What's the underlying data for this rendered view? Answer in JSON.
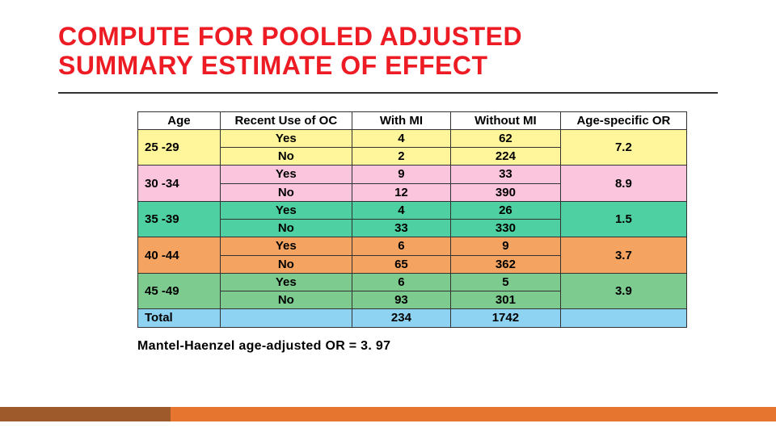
{
  "title_line1": "COMPUTE FOR POOLED ADJUSTED",
  "title_line2": "SUMMARY ESTIMATE OF EFFECT",
  "caption": "Mantel-Haenzel age-adjusted OR = 3. 97",
  "headers": {
    "age": "Age",
    "recent_use": "Recent Use of OC",
    "with_mi": "With MI",
    "without_mi": "Without MI",
    "or": "Age-specific OR"
  },
  "col_widths": {
    "age": 15,
    "recent_use": 24,
    "with_mi": 18,
    "without_mi": 20,
    "or": 23
  },
  "groups": [
    {
      "age": "25 -29",
      "rows": [
        {
          "use": "Yes",
          "with_mi": "4",
          "without_mi": "62"
        },
        {
          "use": "No",
          "with_mi": "2",
          "without_mi": "224"
        }
      ],
      "or": "7.2",
      "color_pair": [
        "#fff59a",
        "#fff59a"
      ]
    },
    {
      "age": "30 -34",
      "rows": [
        {
          "use": "Yes",
          "with_mi": "9",
          "without_mi": "33"
        },
        {
          "use": "No",
          "with_mi": "12",
          "without_mi": "390"
        }
      ],
      "or": "8.9",
      "color_pair": [
        "#fbc5dd",
        "#fbc5dd"
      ]
    },
    {
      "age": "35 -39",
      "rows": [
        {
          "use": "Yes",
          "with_mi": "4",
          "without_mi": "26"
        },
        {
          "use": "No",
          "with_mi": "33",
          "without_mi": "330"
        }
      ],
      "or": "1.5",
      "color_pair": [
        "#4fd0a2",
        "#4fd0a2"
      ]
    },
    {
      "age": "40 -44",
      "rows": [
        {
          "use": "Yes",
          "with_mi": "6",
          "without_mi": "9"
        },
        {
          "use": "No",
          "with_mi": "65",
          "without_mi": "362"
        }
      ],
      "or": "3.7",
      "color_pair": [
        "#f4a460",
        "#f4a460"
      ]
    },
    {
      "age": "45 -49",
      "rows": [
        {
          "use": "Yes",
          "with_mi": "6",
          "without_mi": "5"
        },
        {
          "use": "No",
          "with_mi": "93",
          "without_mi": "301"
        }
      ],
      "or": "3.9",
      "color_pair": [
        "#7ecb8f",
        "#7ecb8f"
      ]
    }
  ],
  "total": {
    "label": "Total",
    "with_mi": "234",
    "without_mi": "1742",
    "color": "#8fd3f2"
  },
  "colors": {
    "title": "#ed1c24",
    "rule": "#333333",
    "border": "#333333",
    "footer_a": "#9e5a2b",
    "footer_b": "#e6762f"
  }
}
